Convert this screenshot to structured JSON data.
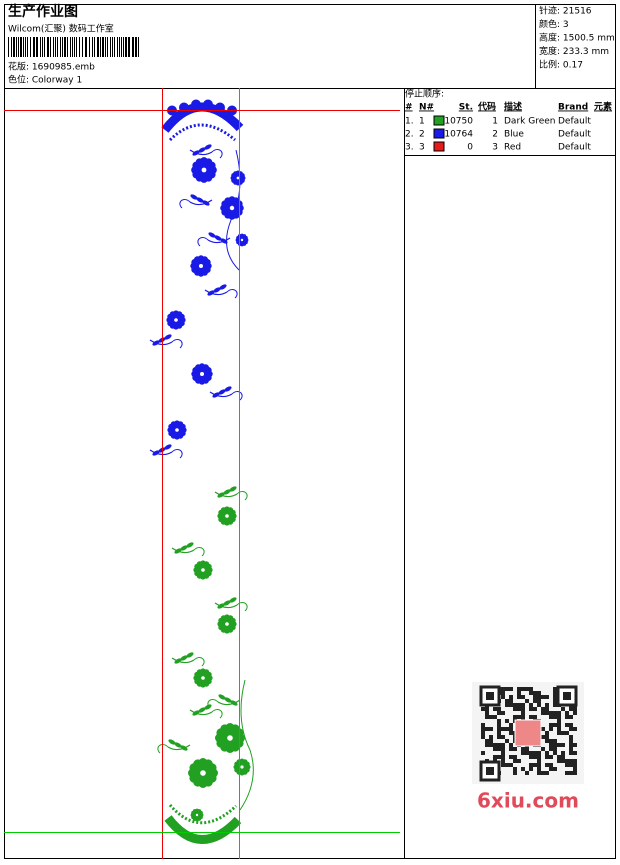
{
  "header": {
    "title": "生产作业图",
    "studio": "Wilcom(汇聚) 数码工作室",
    "design": "花版: 1690985.emb",
    "colorway": "色位: Colorway 1"
  },
  "info": [
    "针迹: 21516",
    "颜色: 3",
    "高度: 1500.5 mm",
    "宽度: 233.3 mm",
    "比例: 0.17"
  ],
  "stop_sequence": {
    "title": "停止顺序:",
    "columns": [
      "#",
      "N#",
      "St.",
      "代码",
      "描述",
      "Brand",
      "元素"
    ],
    "rows": [
      {
        "index": "1.",
        "n": "1",
        "color": "#22a022",
        "stitches": "10750",
        "code": "1",
        "description": "Dark Green",
        "brand": "Default"
      },
      {
        "index": "2.",
        "n": "2",
        "color": "#1a1ae6",
        "stitches": "10764",
        "code": "2",
        "description": "Blue",
        "brand": "Default"
      },
      {
        "index": "3.",
        "n": "3",
        "color": "#e61a1a",
        "stitches": "0",
        "code": "3",
        "description": "Red",
        "brand": "Default"
      }
    ]
  },
  "watermark": "6xiu.com"
}
